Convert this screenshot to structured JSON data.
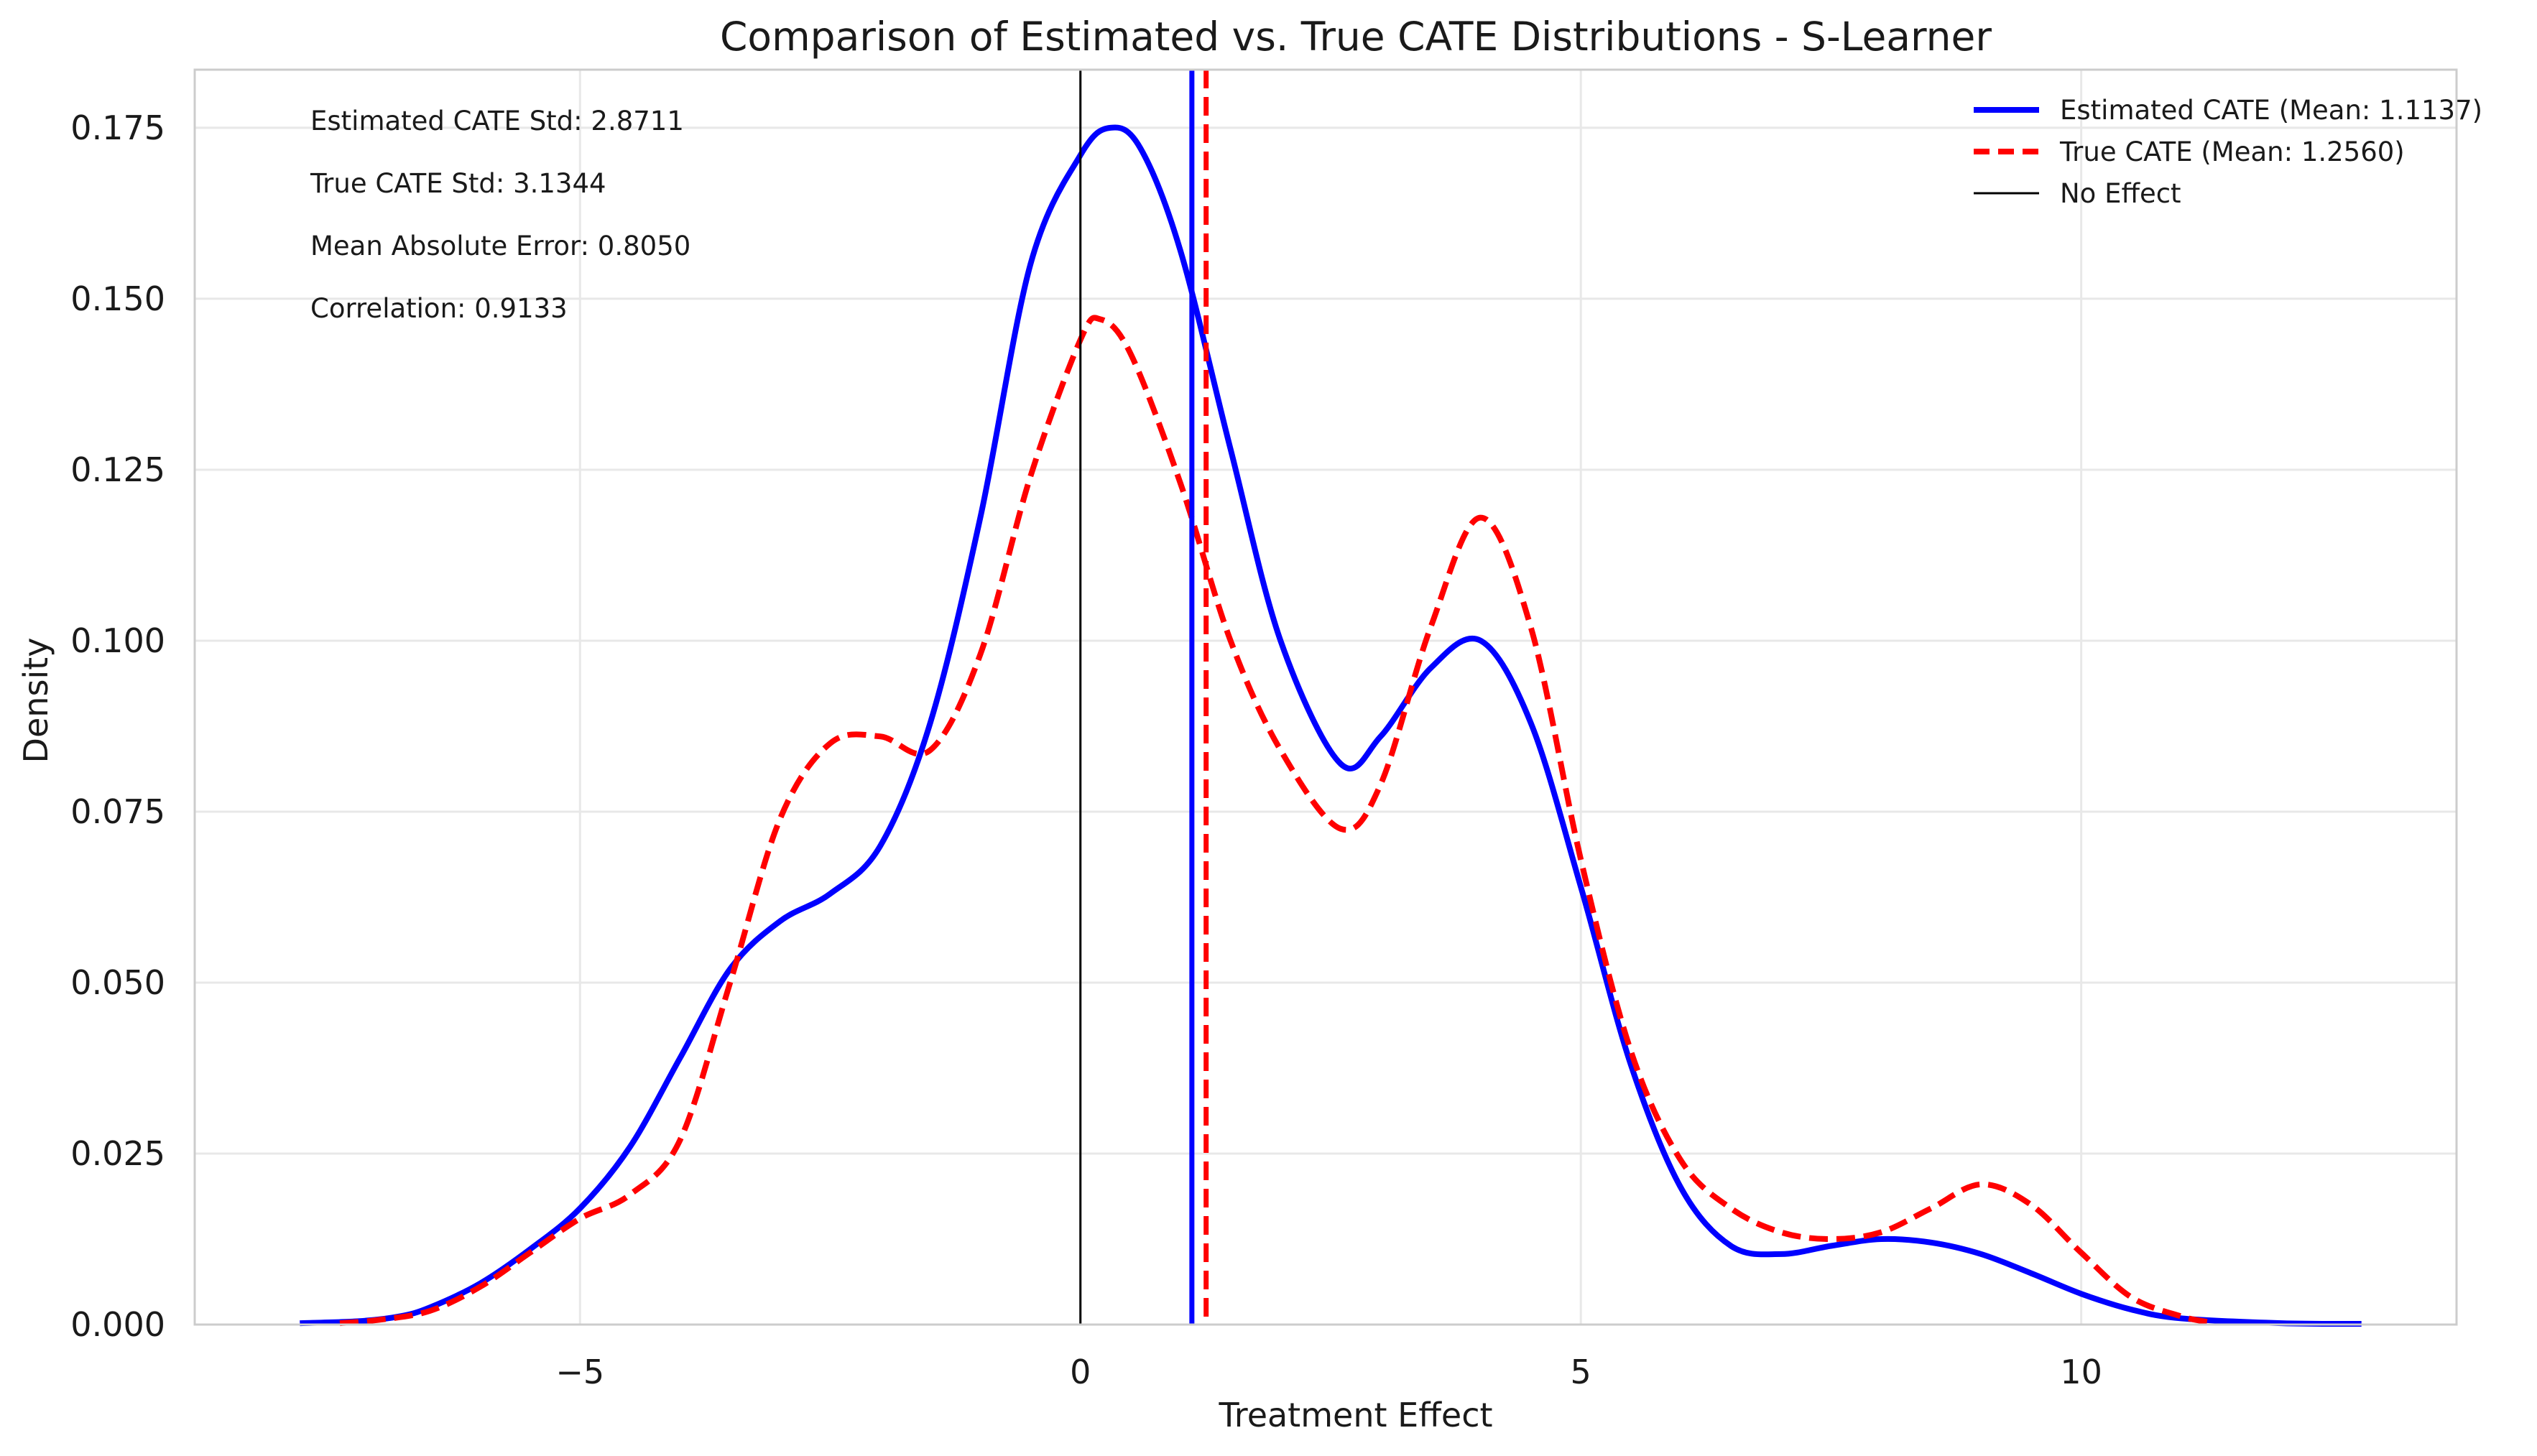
{
  "chart_data": {
    "type": "line",
    "title": "Comparison of Estimated vs. True CATE Distributions - S-Learner",
    "xlabel": "Treatment Effect",
    "ylabel": "Density",
    "xlim": [
      -8.85,
      13.75
    ],
    "ylim": [
      0,
      0.1835
    ],
    "xticks": [
      -5,
      0,
      5,
      10
    ],
    "xtick_labels": [
      "−5",
      "0",
      "5",
      "10"
    ],
    "yticks": [
      0,
      0.025,
      0.05,
      0.075,
      0.1,
      0.125,
      0.15,
      0.175
    ],
    "ytick_labels": [
      "0.000",
      "0.025",
      "0.050",
      "0.075",
      "0.100",
      "0.125",
      "0.150",
      "0.175"
    ],
    "grid": true,
    "legend_position": "top-right",
    "series": [
      {
        "name": "Estimated CATE (Mean: 1.1137)",
        "style": "solid",
        "color": "#0000ff",
        "x": [
          -7.8,
          -7.2,
          -6.8,
          -6.5,
          -6.0,
          -5.5,
          -5.0,
          -4.5,
          -4.0,
          -3.5,
          -3.0,
          -2.5,
          -2.0,
          -1.5,
          -1.0,
          -0.5,
          0.0,
          0.3,
          0.6,
          1.0,
          1.5,
          2.0,
          2.6,
          3.0,
          3.5,
          4.0,
          4.5,
          5.0,
          5.5,
          6.0,
          6.5,
          7.0,
          7.5,
          8.0,
          8.5,
          9.0,
          9.5,
          10.0,
          10.5,
          11.0,
          12.0,
          12.8
        ],
        "y": [
          0.0002,
          0.0005,
          0.0012,
          0.0025,
          0.006,
          0.011,
          0.017,
          0.026,
          0.039,
          0.052,
          0.059,
          0.063,
          0.07,
          0.088,
          0.118,
          0.155,
          0.171,
          0.175,
          0.172,
          0.157,
          0.128,
          0.1,
          0.082,
          0.086,
          0.096,
          0.1,
          0.088,
          0.064,
          0.038,
          0.02,
          0.0115,
          0.0103,
          0.0115,
          0.0125,
          0.012,
          0.0103,
          0.0075,
          0.0045,
          0.0022,
          0.0009,
          0.0002,
          0.0001
        ]
      },
      {
        "name": "True CATE (Mean: 1.2560)",
        "style": "dashed",
        "color": "#ff0000",
        "x": [
          -7.4,
          -7.0,
          -6.5,
          -6.0,
          -5.5,
          -5.0,
          -4.5,
          -4.0,
          -3.5,
          -3.0,
          -2.5,
          -2.0,
          -1.5,
          -1.0,
          -0.5,
          0.0,
          0.2,
          0.5,
          1.0,
          1.5,
          2.0,
          2.6,
          3.0,
          3.5,
          4.0,
          4.5,
          5.0,
          5.5,
          6.0,
          6.5,
          7.0,
          7.5,
          8.0,
          8.5,
          9.0,
          9.5,
          10.0,
          10.5,
          11.0,
          11.3
        ],
        "y": [
          0.0002,
          0.0007,
          0.002,
          0.0055,
          0.0105,
          0.0155,
          0.019,
          0.027,
          0.05,
          0.074,
          0.085,
          0.086,
          0.084,
          0.098,
          0.124,
          0.144,
          0.147,
          0.142,
          0.123,
          0.1,
          0.084,
          0.0725,
          0.079,
          0.102,
          0.118,
          0.102,
          0.068,
          0.04,
          0.024,
          0.017,
          0.0135,
          0.0125,
          0.0135,
          0.017,
          0.0205,
          0.0175,
          0.0105,
          0.004,
          0.0012,
          0.0003
        ]
      }
    ],
    "vlines": [
      {
        "name": "No Effect",
        "x": 0,
        "color": "#000000",
        "style": "solid"
      },
      {
        "name": "estimated-mean",
        "x": 1.1137,
        "color": "#0000ff",
        "style": "solid"
      },
      {
        "name": "true-mean",
        "x": 1.256,
        "color": "#ff0000",
        "style": "dashed"
      }
    ],
    "annotations": [
      "Estimated CATE Std: 2.8711",
      "True CATE Std: 3.1344",
      "Mean Absolute Error: 0.8050",
      "Correlation: 0.9133"
    ],
    "legend": [
      {
        "label": "Estimated CATE (Mean: 1.1137)",
        "color": "#0000ff",
        "style": "solid"
      },
      {
        "label": "True CATE (Mean: 1.2560)",
        "color": "#ff0000",
        "style": "dashed"
      },
      {
        "label": "No Effect",
        "color": "#000000",
        "style": "solid"
      }
    ]
  }
}
